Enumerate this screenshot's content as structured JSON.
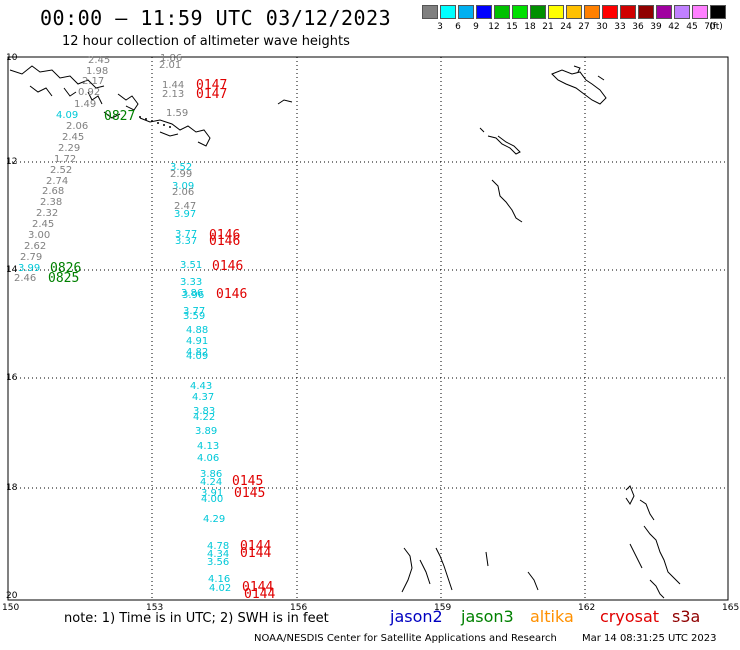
{
  "header": {
    "title": "00:00 – 11:59 UTC 03/12/2023",
    "subtitle": "12 hour collection of altimeter wave heights"
  },
  "colorbar": {
    "unit": "(ft)",
    "colors": [
      "#808080",
      "#00ffff",
      "#00b0f0",
      "#0000ff",
      "#00c000",
      "#00e000",
      "#009000",
      "#ffff00",
      "#ffc000",
      "#ff8000",
      "#ff0000",
      "#d00000",
      "#900000",
      "#a000a0",
      "#c080ff",
      "#ff80ff",
      "#000000"
    ],
    "labels": [
      "3",
      "6",
      "9",
      "12",
      "15",
      "18",
      "21",
      "24",
      "27",
      "30",
      "33",
      "36",
      "39",
      "42",
      "45",
      "70"
    ]
  },
  "map": {
    "lat_ticks": [
      "10",
      "12",
      "14",
      "16",
      "18",
      "20"
    ],
    "lon_ticks": [
      "150",
      "153",
      "156",
      "159",
      "162",
      "165"
    ]
  },
  "observations": [
    {
      "t": "2.45",
      "c": "#808080"
    },
    {
      "t": "1.98",
      "c": "#808080"
    },
    {
      "t": "2.17",
      "c": "#808080"
    },
    {
      "t": "0.92",
      "c": "#808080"
    },
    {
      "t": "1.49",
      "c": "#808080"
    },
    {
      "t": "4.09",
      "c": "#00c8d8"
    },
    {
      "t": "2.06",
      "c": "#808080"
    },
    {
      "t": "2.45",
      "c": "#808080"
    },
    {
      "t": "2.29",
      "c": "#808080"
    },
    {
      "t": "1.72",
      "c": "#808080"
    },
    {
      "t": "2.52",
      "c": "#808080"
    },
    {
      "t": "2.74",
      "c": "#808080"
    },
    {
      "t": "2.68",
      "c": "#808080"
    },
    {
      "t": "2.38",
      "c": "#808080"
    },
    {
      "t": "2.32",
      "c": "#808080"
    },
    {
      "t": "2.45",
      "c": "#808080"
    },
    {
      "t": "3.00",
      "c": "#808080"
    },
    {
      "t": "2.62",
      "c": "#808080"
    },
    {
      "t": "2.79",
      "c": "#808080"
    },
    {
      "t": "3.99",
      "c": "#00c8d8"
    },
    {
      "t": "2.46",
      "c": "#808080"
    },
    {
      "t": "1.86",
      "c": "#808080"
    },
    {
      "t": "2.01",
      "c": "#808080"
    },
    {
      "t": "1.44",
      "c": "#808080"
    },
    {
      "t": "2.13",
      "c": "#808080"
    },
    {
      "t": "1.59",
      "c": "#808080"
    },
    {
      "t": "3.52",
      "c": "#00c8d8"
    },
    {
      "t": "2.99",
      "c": "#808080"
    },
    {
      "t": "3.09",
      "c": "#00c8d8"
    },
    {
      "t": "2.06",
      "c": "#808080"
    },
    {
      "t": "2.47",
      "c": "#808080"
    },
    {
      "t": "3.97",
      "c": "#00c8d8"
    },
    {
      "t": "3.77",
      "c": "#00c8d8"
    },
    {
      "t": "3.37",
      "c": "#00c8d8"
    },
    {
      "t": "3.51",
      "c": "#00c8d8"
    },
    {
      "t": "3.33",
      "c": "#00c8d8"
    },
    {
      "t": "3.86",
      "c": "#00c8d8"
    },
    {
      "t": "3.96",
      "c": "#00c8d8"
    },
    {
      "t": "3.77",
      "c": "#00c8d8"
    },
    {
      "t": "3.59",
      "c": "#00c8d8"
    },
    {
      "t": "4.88",
      "c": "#00c8d8"
    },
    {
      "t": "4.91",
      "c": "#00c8d8"
    },
    {
      "t": "4.82",
      "c": "#00c8d8"
    },
    {
      "t": "4.09",
      "c": "#00c8d8"
    },
    {
      "t": "4.43",
      "c": "#00c8d8"
    },
    {
      "t": "4.37",
      "c": "#00c8d8"
    },
    {
      "t": "3.83",
      "c": "#00c8d8"
    },
    {
      "t": "4.22",
      "c": "#00c8d8"
    },
    {
      "t": "3.89",
      "c": "#00c8d8"
    },
    {
      "t": "4.13",
      "c": "#00c8d8"
    },
    {
      "t": "4.06",
      "c": "#00c8d8"
    },
    {
      "t": "3.86",
      "c": "#00c8d8"
    },
    {
      "t": "4.24",
      "c": "#00c8d8"
    },
    {
      "t": "3.91",
      "c": "#00c8d8"
    },
    {
      "t": "4.00",
      "c": "#00c8d8"
    },
    {
      "t": "4.29",
      "c": "#00c8d8"
    },
    {
      "t": "4.78",
      "c": "#00c8d8"
    },
    {
      "t": "4.34",
      "c": "#00c8d8"
    },
    {
      "t": "3.56",
      "c": "#00c8d8"
    },
    {
      "t": "4.16",
      "c": "#00c8d8"
    },
    {
      "t": "4.02",
      "c": "#00c8d8"
    }
  ],
  "passes": [
    {
      "t": "0827",
      "c": "#008000"
    },
    {
      "t": "0826",
      "c": "#008000"
    },
    {
      "t": "0825",
      "c": "#008000"
    },
    {
      "t": "0147",
      "c": "#e00000"
    },
    {
      "t": "0147",
      "c": "#e00000"
    },
    {
      "t": "0146",
      "c": "#e00000"
    },
    {
      "t": "0146",
      "c": "#e00000"
    },
    {
      "t": "0146",
      "c": "#e00000"
    },
    {
      "t": "0146",
      "c": "#e00000"
    },
    {
      "t": "0145",
      "c": "#e00000"
    },
    {
      "t": "0145",
      "c": "#e00000"
    },
    {
      "t": "0144",
      "c": "#e00000"
    },
    {
      "t": "0144",
      "c": "#e00000"
    },
    {
      "t": "0144",
      "c": "#e00000"
    },
    {
      "t": "0144",
      "c": "#e00000"
    }
  ],
  "footer": {
    "note": "note:  1) Time is in UTC;  2) SWH is in feet",
    "satellites": [
      {
        "name": "jason2",
        "color": "#0000c0"
      },
      {
        "name": "jason3",
        "color": "#008000"
      },
      {
        "name": "altika",
        "color": "#ff9000"
      },
      {
        "name": "cryosat",
        "color": "#e00000"
      },
      {
        "name": "s3a",
        "color": "#900000"
      }
    ],
    "credit": "NOAA/NESDIS Center for Satellite Applications and Research",
    "timestamp": "Mar 14 08:31:25 UTC 2023"
  }
}
